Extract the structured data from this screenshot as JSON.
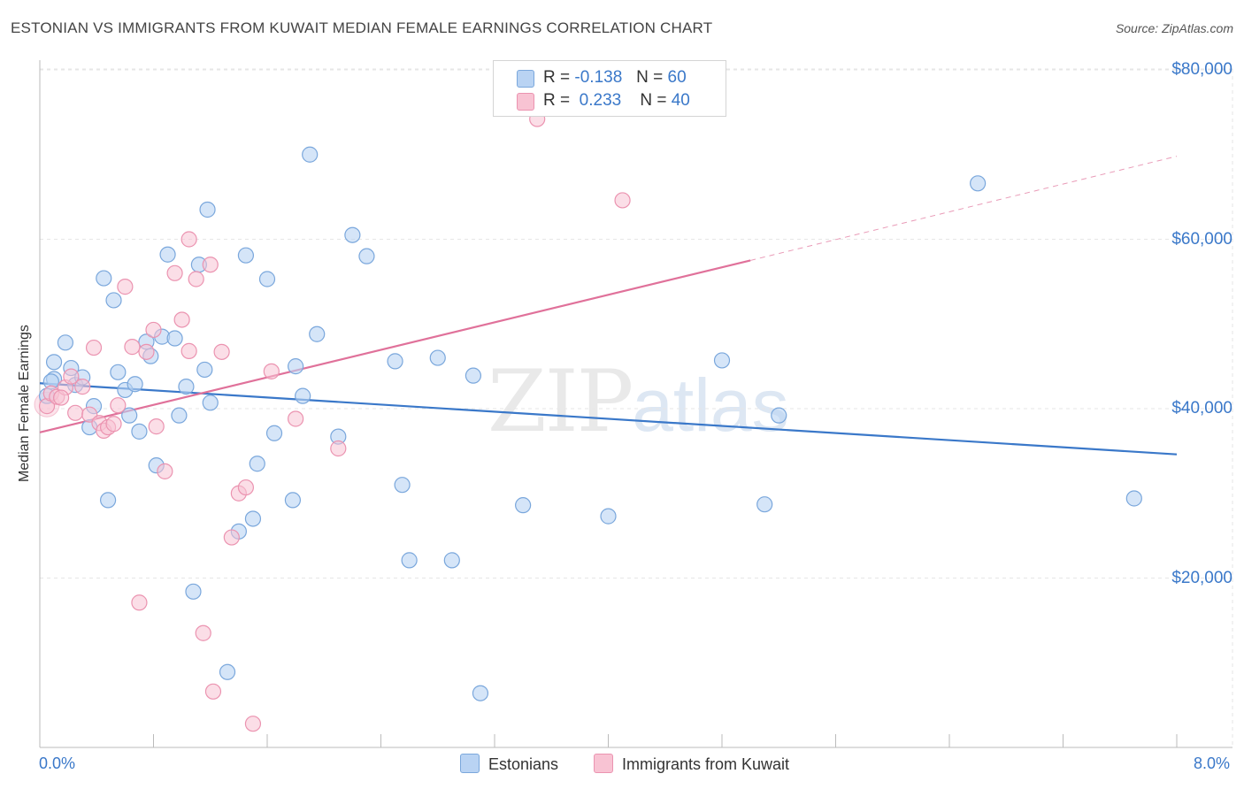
{
  "title": "ESTONIAN VS IMMIGRANTS FROM KUWAIT MEDIAN FEMALE EARNINGS CORRELATION CHART",
  "source": "Source: ZipAtlas.com",
  "watermark": {
    "zip": "ZIP",
    "atlas": "atlas"
  },
  "legend": {
    "rows": [
      {
        "r_label": "R =",
        "r_value": "-0.138",
        "n_label": "N =",
        "n_value": "60"
      },
      {
        "r_label": "R =",
        "r_value": "0.233",
        "n_label": "N =",
        "n_value": "40"
      }
    ]
  },
  "colors": {
    "estonians_fill": "#b9d3f3",
    "estonians_stroke": "#7aa7dc",
    "estonians_line": "#3a78c9",
    "kuwait_fill": "#f8c3d3",
    "kuwait_stroke": "#eb93b0",
    "kuwait_line": "#e0719a",
    "axis_text": "#3a78c9",
    "grid": "#e6e6e6"
  },
  "chart_data": {
    "type": "scatter",
    "title": "ESTONIAN VS IMMIGRANTS FROM KUWAIT MEDIAN FEMALE EARNINGS CORRELATION CHART",
    "xlabel": "",
    "ylabel": "Median Female Earnings",
    "xlim": [
      0,
      8
    ],
    "ylim": [
      0,
      80000
    ],
    "x_tick_labels": [
      "0.0%",
      "8.0%"
    ],
    "y_ticks": [
      20000,
      40000,
      60000,
      80000
    ],
    "y_tick_labels": [
      "$20,000",
      "$40,000",
      "$60,000",
      "$80,000"
    ],
    "grid": true,
    "series": [
      {
        "name": "Estonians",
        "r": -0.138,
        "n": 60,
        "trend": {
          "x0": 0.0,
          "y0": 43000,
          "x1": 8.0,
          "y1": 34600
        },
        "points": [
          [
            0.05,
            41500
          ],
          [
            0.1,
            43500
          ],
          [
            0.1,
            45500
          ],
          [
            0.18,
            47800
          ],
          [
            0.22,
            44800
          ],
          [
            0.25,
            42800
          ],
          [
            0.3,
            43700
          ],
          [
            0.35,
            37800
          ],
          [
            0.38,
            40300
          ],
          [
            0.45,
            55400
          ],
          [
            0.48,
            29200
          ],
          [
            0.52,
            52800
          ],
          [
            0.55,
            44300
          ],
          [
            0.6,
            42200
          ],
          [
            0.63,
            39200
          ],
          [
            0.67,
            42900
          ],
          [
            0.7,
            37300
          ],
          [
            0.75,
            47900
          ],
          [
            0.78,
            46200
          ],
          [
            0.82,
            33300
          ],
          [
            0.86,
            48500
          ],
          [
            0.9,
            58200
          ],
          [
            0.95,
            48300
          ],
          [
            0.98,
            39200
          ],
          [
            1.03,
            42600
          ],
          [
            1.08,
            18400
          ],
          [
            1.12,
            57000
          ],
          [
            1.16,
            44600
          ],
          [
            1.18,
            63500
          ],
          [
            1.2,
            40700
          ],
          [
            1.32,
            8900
          ],
          [
            1.4,
            25500
          ],
          [
            1.45,
            58100
          ],
          [
            1.5,
            27000
          ],
          [
            1.53,
            33500
          ],
          [
            1.6,
            55300
          ],
          [
            1.65,
            37100
          ],
          [
            1.78,
            29200
          ],
          [
            1.8,
            45000
          ],
          [
            1.85,
            41500
          ],
          [
            1.9,
            70000
          ],
          [
            1.95,
            48800
          ],
          [
            2.1,
            36700
          ],
          [
            2.2,
            60500
          ],
          [
            2.3,
            58000
          ],
          [
            2.5,
            45600
          ],
          [
            2.55,
            31000
          ],
          [
            2.6,
            22100
          ],
          [
            2.8,
            46000
          ],
          [
            2.9,
            22100
          ],
          [
            3.05,
            43900
          ],
          [
            3.1,
            6400
          ],
          [
            3.4,
            28600
          ],
          [
            4.0,
            27300
          ],
          [
            4.8,
            45700
          ],
          [
            5.1,
            28700
          ],
          [
            5.2,
            39200
          ],
          [
            6.6,
            66600
          ],
          [
            7.7,
            29400
          ],
          [
            0.08,
            43200
          ]
        ]
      },
      {
        "name": "Immigrants from Kuwait",
        "r": 0.233,
        "n": 40,
        "trend": {
          "x0": 0.0,
          "y0": 37200,
          "x1": 5.0,
          "y1": 57500,
          "x_dash_end": 8.0,
          "y_dash_end": 69800
        },
        "points": [
          [
            0.05,
            40300
          ],
          [
            0.08,
            41800
          ],
          [
            0.12,
            41400
          ],
          [
            0.18,
            42500
          ],
          [
            0.22,
            43800
          ],
          [
            0.25,
            39500
          ],
          [
            0.3,
            42600
          ],
          [
            0.35,
            39300
          ],
          [
            0.38,
            47200
          ],
          [
            0.42,
            38300
          ],
          [
            0.45,
            37400
          ],
          [
            0.48,
            37800
          ],
          [
            0.52,
            38200
          ],
          [
            0.55,
            40400
          ],
          [
            0.6,
            54400
          ],
          [
            0.65,
            47300
          ],
          [
            0.7,
            17100
          ],
          [
            0.75,
            46700
          ],
          [
            0.8,
            49300
          ],
          [
            0.82,
            37900
          ],
          [
            0.88,
            32600
          ],
          [
            0.95,
            56000
          ],
          [
            1.0,
            50500
          ],
          [
            1.05,
            46800
          ],
          [
            1.05,
            60000
          ],
          [
            1.1,
            55300
          ],
          [
            1.15,
            13500
          ],
          [
            1.2,
            57000
          ],
          [
            1.22,
            6600
          ],
          [
            1.28,
            46700
          ],
          [
            1.35,
            24800
          ],
          [
            1.4,
            30000
          ],
          [
            1.45,
            30700
          ],
          [
            1.5,
            2800
          ],
          [
            1.63,
            44400
          ],
          [
            1.8,
            38800
          ],
          [
            2.1,
            35300
          ],
          [
            3.5,
            74200
          ],
          [
            4.1,
            64600
          ],
          [
            0.15,
            41300
          ]
        ]
      }
    ]
  },
  "bottom_legend": [
    "Estonians",
    "Immigrants from Kuwait"
  ]
}
